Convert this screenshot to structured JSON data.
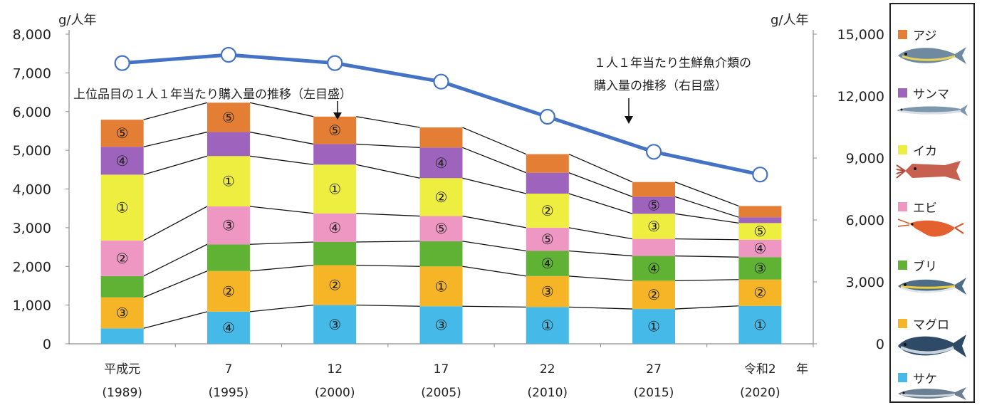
{
  "chart_data": {
    "type": "bar",
    "subtype": "stacked bar with secondary-axis line",
    "left_unit": "g/人年",
    "right_unit": "g/人年",
    "categories": [
      "平成元",
      "7",
      "12",
      "17",
      "22",
      "27",
      "令和2"
    ],
    "category_years": [
      "(1989)",
      "(1995)",
      "(2000)",
      "(2005)",
      "(2010)",
      "(2015)",
      "(2020)"
    ],
    "x_suffix": "年",
    "left_axis": {
      "ylim": [
        0,
        8000
      ],
      "ticks": [
        "0",
        "1,000",
        "2,000",
        "3,000",
        "4,000",
        "5,000",
        "6,000",
        "7,000",
        "8,000"
      ]
    },
    "right_axis": {
      "ylim": [
        0,
        15000
      ],
      "ticks": [
        "0",
        "3,000",
        "6,000",
        "9,000",
        "12,000",
        "15,000"
      ]
    },
    "series": [
      {
        "name": "サケ",
        "color": "#45b9e8",
        "values": [
          400,
          830,
          1000,
          970,
          950,
          900,
          980
        ],
        "ranks": [
          "",
          "④",
          "③",
          "③",
          "①",
          "①",
          "①"
        ]
      },
      {
        "name": "マグロ",
        "color": "#f5b526",
        "values": [
          800,
          1050,
          1030,
          1030,
          800,
          730,
          680
        ],
        "ranks": [
          "③",
          "②",
          "②",
          "①",
          "③",
          "②",
          "②"
        ]
      },
      {
        "name": "ブリ",
        "color": "#5fb233",
        "values": [
          550,
          690,
          600,
          650,
          650,
          640,
          580
        ],
        "ranks": [
          "",
          "",
          "",
          "",
          "④",
          "④",
          "③"
        ]
      },
      {
        "name": "エビ",
        "color": "#ef97c3",
        "values": [
          920,
          980,
          740,
          650,
          600,
          440,
          450
        ],
        "ranks": [
          "②",
          "③",
          "④",
          "⑤",
          "⑤",
          "",
          "④"
        ]
      },
      {
        "name": "イカ",
        "color": "#eeee41",
        "values": [
          1700,
          1300,
          1260,
          980,
          880,
          650,
          430
        ],
        "ranks": [
          "①",
          "①",
          "①",
          "②",
          "②",
          "③",
          "⑤"
        ]
      },
      {
        "name": "サンマ",
        "color": "#9d63bd",
        "values": [
          720,
          620,
          530,
          790,
          540,
          440,
          150
        ],
        "ranks": [
          "④",
          "",
          "",
          "④",
          "",
          "⑤",
          ""
        ]
      },
      {
        "name": "アジ",
        "color": "#e37e34",
        "values": [
          700,
          760,
          710,
          520,
          480,
          380,
          290
        ],
        "ranks": [
          "⑤",
          "⑤",
          "⑤",
          "",
          "",
          "",
          ""
        ]
      }
    ],
    "line": {
      "name": "１人１年当たり生鮮魚介類の購入量の推移（右目盛）",
      "color": "#4472c4",
      "axis": "right",
      "values": [
        13600,
        14000,
        13600,
        12700,
        11000,
        9300,
        8200
      ]
    },
    "annotations": [
      {
        "text": "上位品目の１人１年当たり購入量の推移（左目盛）"
      },
      {
        "text_lines": [
          "１人１年当たり生鮮魚介類の",
          "購入量の推移（右目盛）"
        ]
      }
    ],
    "legend_position": "right"
  }
}
